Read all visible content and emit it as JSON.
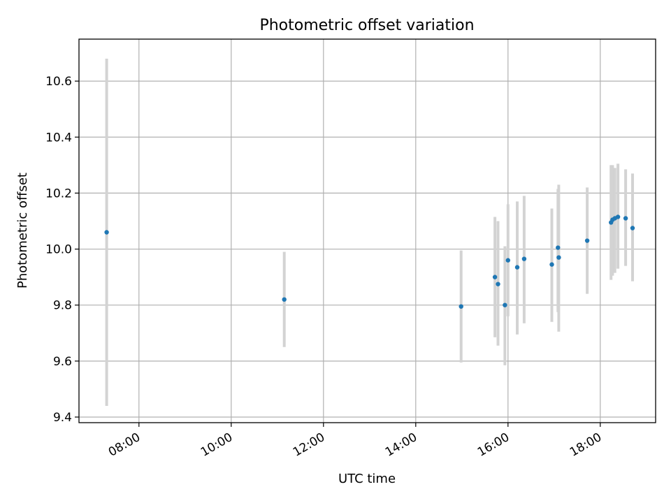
{
  "chart_data": {
    "type": "scatter",
    "title": "Photometric offset variation",
    "xlabel": "UTC time",
    "ylabel": "Photometric offset",
    "xlim": [
      "06:42",
      "19:12"
    ],
    "ylim": [
      9.38,
      10.75
    ],
    "x_ticks": [
      "08:00",
      "10:00",
      "12:00",
      "14:00",
      "16:00",
      "18:00"
    ],
    "y_ticks": [
      "9.4",
      "9.6",
      "9.8",
      "10.0",
      "10.2",
      "10.4",
      "10.6"
    ],
    "grid": true,
    "colors": {
      "points": "#1f77b4",
      "error_bars": "#d3d3d3"
    },
    "points": [
      {
        "x": "07:18",
        "y": 10.06,
        "yerr_low": 9.44,
        "yerr_high": 10.68
      },
      {
        "x": "11:09",
        "y": 9.82,
        "yerr_low": 9.65,
        "yerr_high": 9.99
      },
      {
        "x": "14:59",
        "y": 9.795,
        "yerr_low": 9.595,
        "yerr_high": 9.995
      },
      {
        "x": "15:43",
        "y": 9.9,
        "yerr_low": 9.685,
        "yerr_high": 10.115
      },
      {
        "x": "15:47",
        "y": 9.875,
        "yerr_low": 9.655,
        "yerr_high": 10.1
      },
      {
        "x": "15:56",
        "y": 9.8,
        "yerr_low": 9.585,
        "yerr_high": 10.01
      },
      {
        "x": "16:00",
        "y": 9.96,
        "yerr_low": 9.76,
        "yerr_high": 10.16
      },
      {
        "x": "16:12",
        "y": 9.935,
        "yerr_low": 9.695,
        "yerr_high": 10.17
      },
      {
        "x": "16:21",
        "y": 9.965,
        "yerr_low": 9.735,
        "yerr_high": 10.19
      },
      {
        "x": "16:57",
        "y": 9.945,
        "yerr_low": 9.74,
        "yerr_high": 10.145
      },
      {
        "x": "17:05",
        "y": 10.005,
        "yerr_low": 9.775,
        "yerr_high": 10.215
      },
      {
        "x": "17:06",
        "y": 9.97,
        "yerr_low": 9.705,
        "yerr_high": 10.23
      },
      {
        "x": "17:43",
        "y": 10.03,
        "yerr_low": 9.84,
        "yerr_high": 10.22
      },
      {
        "x": "18:14",
        "y": 10.095,
        "yerr_low": 9.89,
        "yerr_high": 10.3
      },
      {
        "x": "18:16",
        "y": 10.105,
        "yerr_low": 9.905,
        "yerr_high": 10.3
      },
      {
        "x": "18:19",
        "y": 10.11,
        "yerr_low": 9.915,
        "yerr_high": 10.29
      },
      {
        "x": "18:23",
        "y": 10.115,
        "yerr_low": 9.93,
        "yerr_high": 10.305
      },
      {
        "x": "18:33",
        "y": 10.11,
        "yerr_low": 9.94,
        "yerr_high": 10.285
      },
      {
        "x": "18:42",
        "y": 10.075,
        "yerr_low": 9.885,
        "yerr_high": 10.27
      }
    ]
  }
}
